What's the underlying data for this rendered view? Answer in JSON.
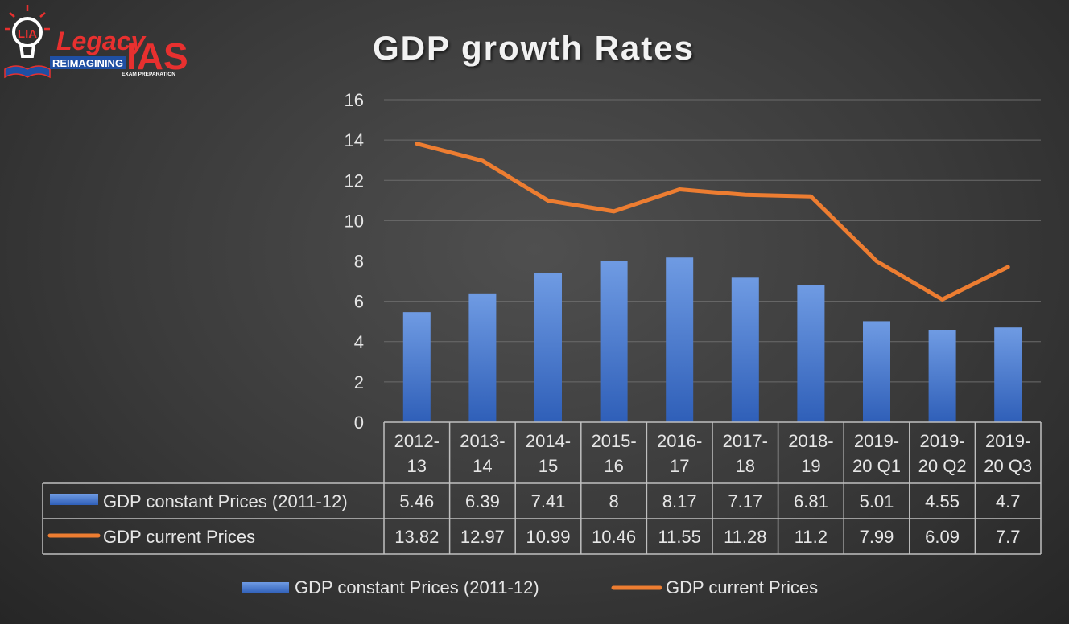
{
  "logo": {
    "badge": "LIA",
    "name_part1": "Legacy",
    "name_part2": "IAS",
    "tagline": "REIMAGINING",
    "subtag": "EXAM PREPARATION"
  },
  "chart_data": {
    "type": "bar",
    "title": "GDP growth Rates",
    "categories": [
      [
        "2012-",
        "13"
      ],
      [
        "2013-",
        "14"
      ],
      [
        "2014-",
        "15"
      ],
      [
        "2015-",
        "16"
      ],
      [
        "2016-",
        "17"
      ],
      [
        "2017-",
        "18"
      ],
      [
        "2018-",
        "19"
      ],
      [
        "2019-",
        "20 Q1"
      ],
      [
        "2019-",
        "20 Q2"
      ],
      [
        "2019-",
        "20 Q3"
      ]
    ],
    "ylim": [
      0,
      16
    ],
    "yticks": [
      0,
      2,
      4,
      6,
      8,
      10,
      12,
      14,
      16
    ],
    "grid": true,
    "legend_position": "bottom",
    "data_table": true,
    "series": [
      {
        "name": "GDP constant Prices (2011-12)",
        "type": "bar",
        "color": "#4a7fd4",
        "values": [
          5.46,
          6.39,
          7.41,
          8,
          8.17,
          7.17,
          6.81,
          5.01,
          4.55,
          4.7
        ]
      },
      {
        "name": "GDP current Prices",
        "type": "line",
        "color": "#ed7d31",
        "values": [
          13.82,
          12.97,
          10.99,
          10.46,
          11.55,
          11.28,
          11.2,
          7.99,
          6.09,
          7.7
        ]
      }
    ]
  }
}
